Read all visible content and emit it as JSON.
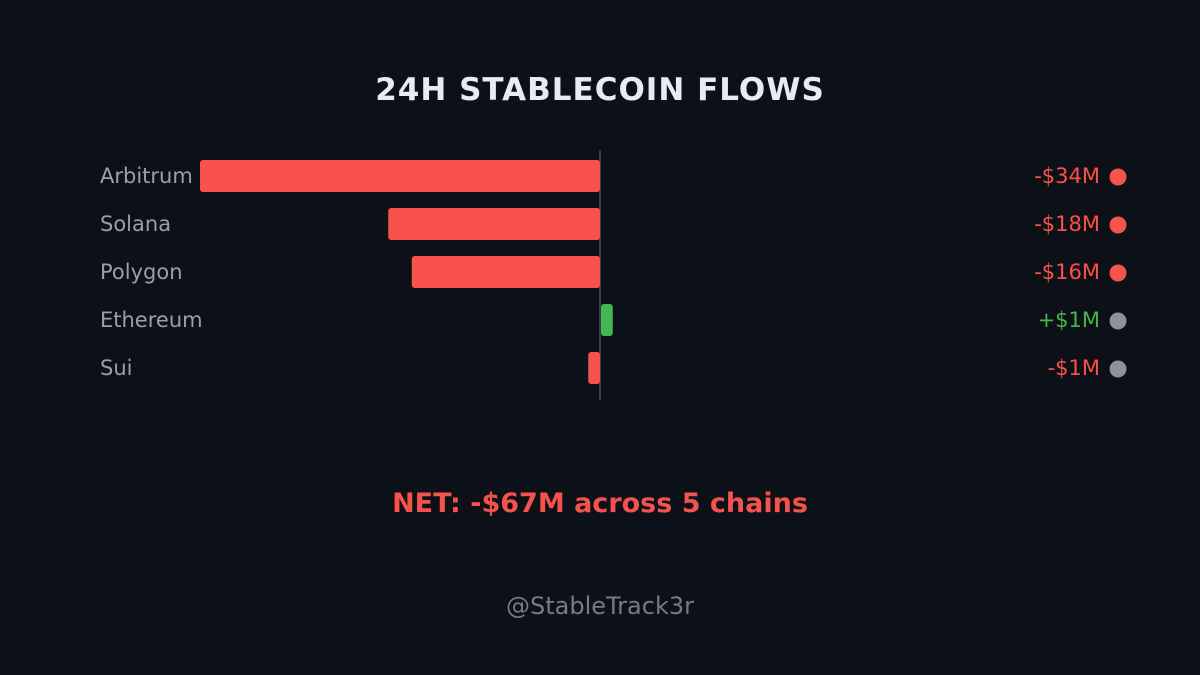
{
  "colors": {
    "background": "#0d1017",
    "negative": "#f8524c",
    "positive": "#3fb950",
    "label": "#9aa0aa",
    "axis": "#3a3d44",
    "dot_grey": "#8b929c",
    "title": "#e6ecf5",
    "handle": "#767c86"
  },
  "chart_data": {
    "type": "bar",
    "orientation": "horizontal",
    "title": "24H STABLECOIN FLOWS",
    "unit": "$M",
    "xlim": [
      -34,
      34
    ],
    "categories": [
      "Arbitrum",
      "Solana",
      "Polygon",
      "Ethereum",
      "Sui"
    ],
    "values": [
      -34,
      -18,
      -16,
      1,
      -1
    ],
    "value_labels": [
      "-$34M",
      "-$18M",
      "-$16M",
      "+$1M",
      "-$1M"
    ],
    "dot_colors": [
      "#f8524c",
      "#f8524c",
      "#f8524c",
      "#8b929c",
      "#8b929c"
    ],
    "grid": false
  },
  "summary": {
    "net": "NET: -$67M across 5 chains"
  },
  "footer": {
    "handle": "@StableTrack3r"
  }
}
